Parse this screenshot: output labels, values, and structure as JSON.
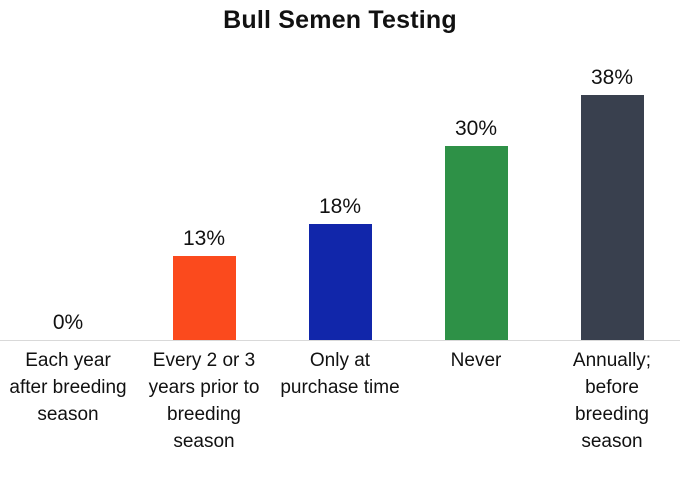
{
  "chart_data": {
    "type": "bar",
    "title": "Bull Semen Testing",
    "categories": [
      "Each year after breeding season",
      "Every 2 or 3 years prior to breeding season",
      "Only at purchase time",
      "Never",
      "Annually; before breeding season"
    ],
    "values": [
      0,
      13,
      18,
      30,
      38
    ],
    "value_labels": [
      "0%",
      "13%",
      "18%",
      "30%",
      "38%"
    ],
    "colors": [
      "#fb4a1d",
      "#fb4a1d",
      "#1126aa",
      "#2e9147",
      "#39404e"
    ],
    "xlabel": "",
    "ylabel": "",
    "ylim": [
      0,
      40
    ],
    "grid": false,
    "legend": "none",
    "axis_line_color": "#d9d9d9"
  }
}
